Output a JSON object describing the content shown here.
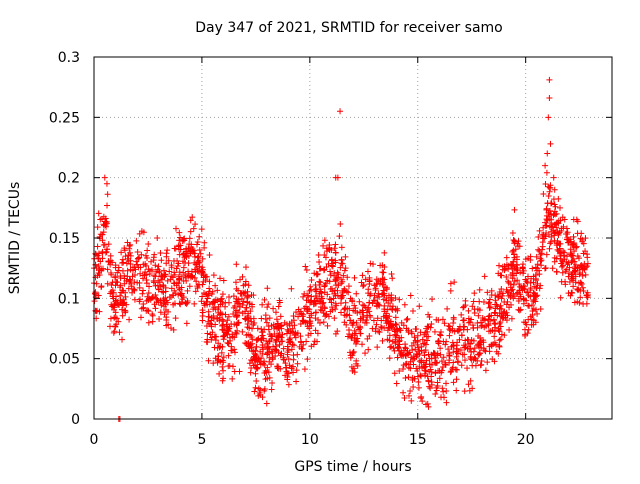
{
  "chart_data": {
    "type": "scatter",
    "title": "Day 347 of 2021, SRMTID for receiver samo",
    "xlabel": "GPS time / hours",
    "ylabel": "SRMTID / TECUs",
    "xlim": [
      0,
      24
    ],
    "ylim": [
      0,
      0.3
    ],
    "xticks": [
      0,
      5,
      10,
      15,
      20
    ],
    "yticks": [
      0,
      0.05,
      0.1,
      0.15,
      0.2,
      0.25,
      0.3
    ],
    "xtick_labels": [
      "0",
      "5",
      "10",
      "15",
      "20"
    ],
    "ytick_labels": [
      "0",
      "0.05",
      "0.1",
      "0.15",
      "0.2",
      "0.25",
      "0.3"
    ],
    "grid": true,
    "marker": "+",
    "color": "#ff0000",
    "series": [
      {
        "name": "SRMTID",
        "trend": [
          {
            "x": 0.0,
            "y": 0.115
          },
          {
            "x": 0.3,
            "y": 0.135
          },
          {
            "x": 0.6,
            "y": 0.15
          },
          {
            "x": 0.8,
            "y": 0.1
          },
          {
            "x": 1.2,
            "y": 0.1
          },
          {
            "x": 1.5,
            "y": 0.12
          },
          {
            "x": 2.0,
            "y": 0.12
          },
          {
            "x": 2.5,
            "y": 0.115
          },
          {
            "x": 3.0,
            "y": 0.11
          },
          {
            "x": 3.5,
            "y": 0.1
          },
          {
            "x": 4.0,
            "y": 0.12
          },
          {
            "x": 4.5,
            "y": 0.13
          },
          {
            "x": 5.0,
            "y": 0.12
          },
          {
            "x": 5.5,
            "y": 0.08
          },
          {
            "x": 6.0,
            "y": 0.075
          },
          {
            "x": 6.5,
            "y": 0.07
          },
          {
            "x": 7.0,
            "y": 0.1
          },
          {
            "x": 7.5,
            "y": 0.05
          },
          {
            "x": 8.0,
            "y": 0.06
          },
          {
            "x": 8.5,
            "y": 0.07
          },
          {
            "x": 9.0,
            "y": 0.06
          },
          {
            "x": 9.5,
            "y": 0.07
          },
          {
            "x": 10.0,
            "y": 0.09
          },
          {
            "x": 10.5,
            "y": 0.1
          },
          {
            "x": 11.0,
            "y": 0.115
          },
          {
            "x": 11.5,
            "y": 0.11
          },
          {
            "x": 12.0,
            "y": 0.07
          },
          {
            "x": 12.5,
            "y": 0.09
          },
          {
            "x": 13.0,
            "y": 0.1
          },
          {
            "x": 13.5,
            "y": 0.1
          },
          {
            "x": 14.0,
            "y": 0.07
          },
          {
            "x": 14.5,
            "y": 0.055
          },
          {
            "x": 15.0,
            "y": 0.05
          },
          {
            "x": 15.5,
            "y": 0.05
          },
          {
            "x": 16.0,
            "y": 0.045
          },
          {
            "x": 16.5,
            "y": 0.06
          },
          {
            "x": 17.0,
            "y": 0.07
          },
          {
            "x": 17.5,
            "y": 0.065
          },
          {
            "x": 18.0,
            "y": 0.075
          },
          {
            "x": 18.5,
            "y": 0.08
          },
          {
            "x": 19.0,
            "y": 0.1
          },
          {
            "x": 19.5,
            "y": 0.13
          },
          {
            "x": 20.0,
            "y": 0.1
          },
          {
            "x": 20.5,
            "y": 0.11
          },
          {
            "x": 21.0,
            "y": 0.175
          },
          {
            "x": 21.5,
            "y": 0.15
          },
          {
            "x": 22.0,
            "y": 0.135
          },
          {
            "x": 22.5,
            "y": 0.12
          },
          {
            "x": 22.9,
            "y": 0.12
          }
        ],
        "spread": 0.03,
        "x_range": [
          0.0,
          22.9
        ],
        "point_count": 2300,
        "outliers": [
          {
            "x": 11.4,
            "y": 0.255
          },
          {
            "x": 21.1,
            "y": 0.281
          },
          {
            "x": 21.1,
            "y": 0.266
          },
          {
            "x": 21.05,
            "y": 0.25
          },
          {
            "x": 21.15,
            "y": 0.228
          },
          {
            "x": 11.3,
            "y": 0.2
          },
          {
            "x": 11.2,
            "y": 0.2
          },
          {
            "x": 0.5,
            "y": 0.2
          },
          {
            "x": 0.6,
            "y": 0.195
          },
          {
            "x": 21.3,
            "y": 0.2
          },
          {
            "x": 20.9,
            "y": 0.21
          },
          {
            "x": 21.0,
            "y": 0.22
          },
          {
            "x": 14.7,
            "y": 0.015
          },
          {
            "x": 15.5,
            "y": 0.01
          },
          {
            "x": 7.7,
            "y": 0.02
          },
          {
            "x": 1.15,
            "y": 0.0
          },
          {
            "x": 1.2,
            "y": 0.0
          }
        ]
      }
    ]
  }
}
